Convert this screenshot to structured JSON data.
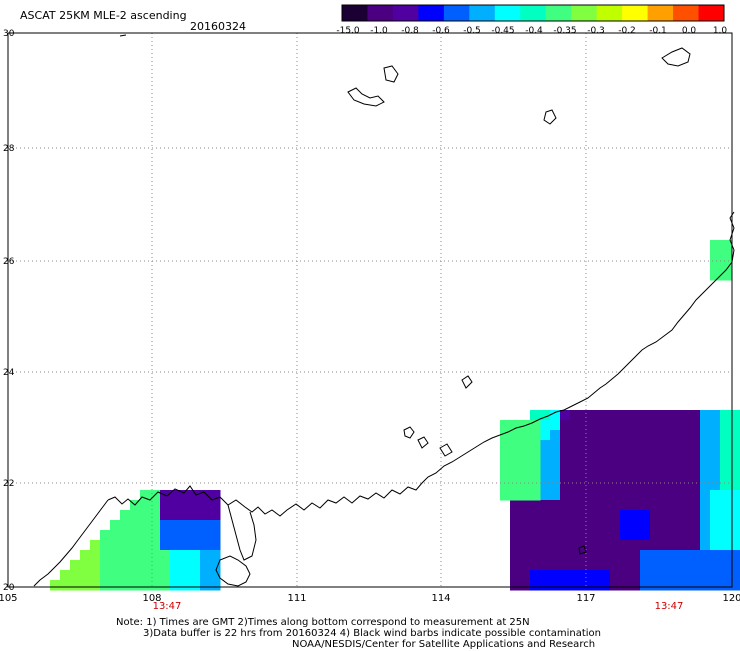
{
  "header": {
    "title": "ASCAT 25KM MLE-2 ascending",
    "date": "20160324"
  },
  "colorbar": {
    "colors": [
      "#1a0033",
      "#4b0082",
      "#5000a0",
      "#0000ff",
      "#0060ff",
      "#00b0ff",
      "#00ffff",
      "#00ffc0",
      "#40ff80",
      "#80ff40",
      "#c0ff00",
      "#ffff00",
      "#ffa000",
      "#ff5000",
      "#ff0000"
    ],
    "labels": [
      "-15.0",
      "-1.0",
      "-0.8",
      "-0.6",
      "-0.5",
      "-0.45",
      "-0.4",
      "-0.35",
      "-0.3",
      "-0.2",
      "-0.1",
      "0.0",
      "1.0"
    ]
  },
  "axes": {
    "x_ticks": [
      "105",
      "108",
      "111",
      "114",
      "117",
      "120"
    ],
    "y_ticks": [
      "30",
      "28",
      "26",
      "24",
      "22",
      "20"
    ],
    "time_labels": [
      "13:47",
      "13:47"
    ]
  },
  "notes": [
    "Note: 1) Times are GMT 2)Times along bottom correspond to measurement at 25N",
    "3)Data buffer is 22 hrs from 20160324 4) Black wind barbs indicate possible contamination",
    "NOAA/NESDIS/Center for Satellite Applications and Research"
  ],
  "colors": {
    "grid": "#888888",
    "time_label": "#cc0000",
    "coastline": "#000000"
  }
}
